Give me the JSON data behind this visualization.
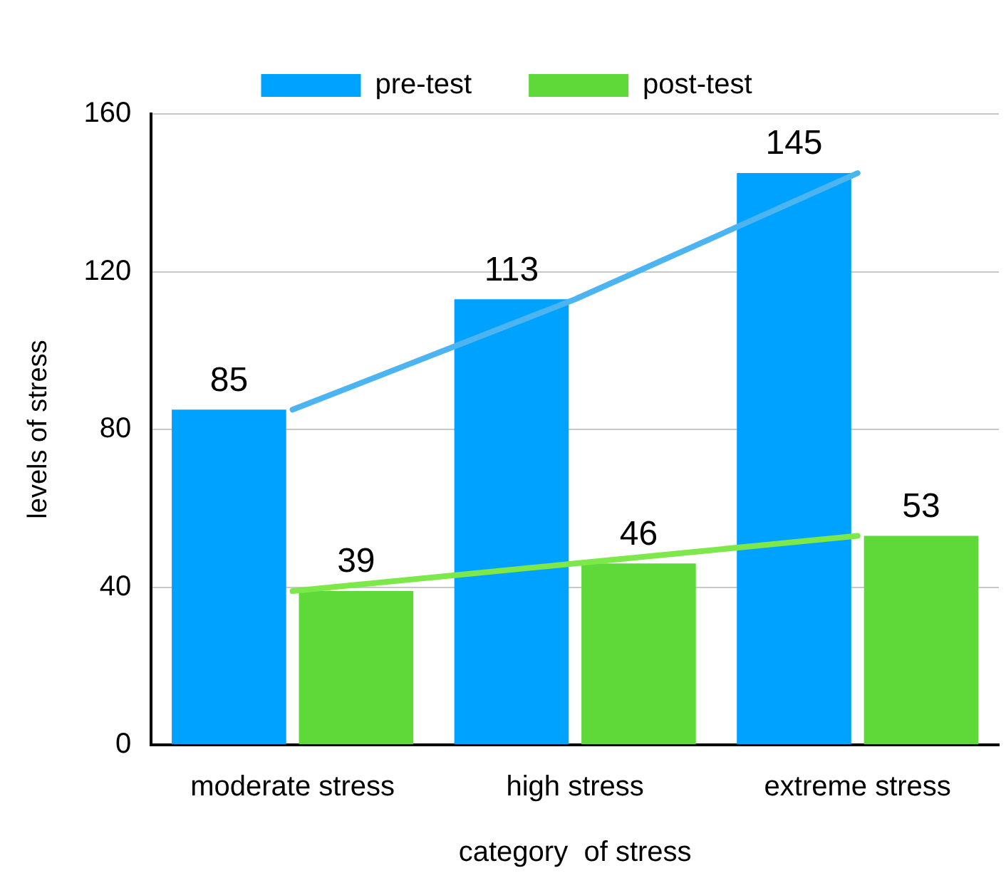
{
  "chart_data": {
    "type": "bar",
    "xlabel": "category  of stress",
    "ylabel": "levels of stress",
    "categories": [
      "moderate stress",
      "high stress",
      "extreme stress"
    ],
    "series": [
      {
        "name": "pre-test",
        "color": "#00a2ff",
        "values": [
          85,
          113,
          145
        ],
        "value_labels": [
          "85",
          "113",
          "145"
        ]
      },
      {
        "name": "post-test",
        "color": "#5fd93a",
        "values": [
          39,
          46,
          53
        ],
        "value_labels": [
          "39",
          "46",
          "53"
        ]
      },
      {
        "type": "line",
        "color": "#4cb4f0",
        "values": [
          85,
          113,
          145
        ]
      },
      {
        "type": "line",
        "color": "#7ce84a",
        "values": [
          39,
          46,
          53
        ]
      }
    ],
    "ylim": [
      0,
      160
    ],
    "yticks": [
      0,
      40,
      80,
      120,
      160
    ],
    "grid": "y",
    "legend": "top",
    "marker": "none",
    "line_style": "solid"
  }
}
